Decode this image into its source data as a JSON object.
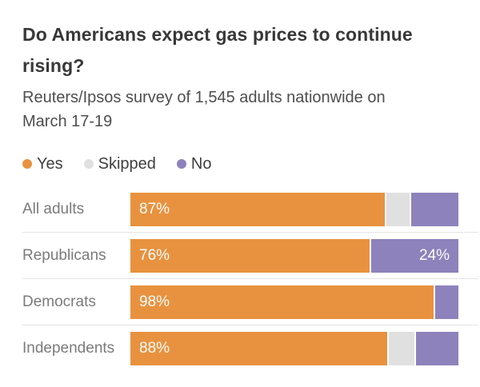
{
  "header": {
    "title_line1": "Do Americans expect gas prices to continue",
    "title_line2": "rising?",
    "subtitle_line1": "Reuters/Ipsos survey of 1,545 adults nationwide on",
    "subtitle_line2": "March 17-19"
  },
  "legend": {
    "position": "top",
    "items": [
      {
        "label": "Yes",
        "color": "#e8923f"
      },
      {
        "label": "Skipped",
        "color": "#e0e0e0"
      },
      {
        "label": "No",
        "color": "#8e82bc"
      }
    ]
  },
  "chart_data": {
    "type": "bar",
    "orientation": "horizontal",
    "stacked": true,
    "title": "Do Americans expect gas prices to continue rising?",
    "subtitle": "Reuters/Ipsos survey of 1,545 adults nationwide on March 17-19",
    "xlim": [
      0,
      100
    ],
    "unit": "%",
    "grid": false,
    "categories": [
      "All adults",
      "Republicans",
      "Democrats",
      "Independents"
    ],
    "series": [
      {
        "name": "Yes",
        "color": "#e8923f",
        "label_align": "left",
        "values": [
          87,
          76,
          98,
          88
        ],
        "labels": [
          "87%",
          "76%",
          "98%",
          "88%"
        ]
      },
      {
        "name": "Skipped",
        "color": "#e0e0e0",
        "label_align": "right",
        "values": [
          2,
          0,
          0,
          3
        ],
        "labels": [
          null,
          null,
          null,
          null
        ]
      },
      {
        "name": "No",
        "color": "#8e82bc",
        "label_align": "right",
        "values": [
          11,
          24,
          2,
          9
        ],
        "labels": [
          null,
          "24%",
          null,
          null
        ]
      }
    ]
  }
}
